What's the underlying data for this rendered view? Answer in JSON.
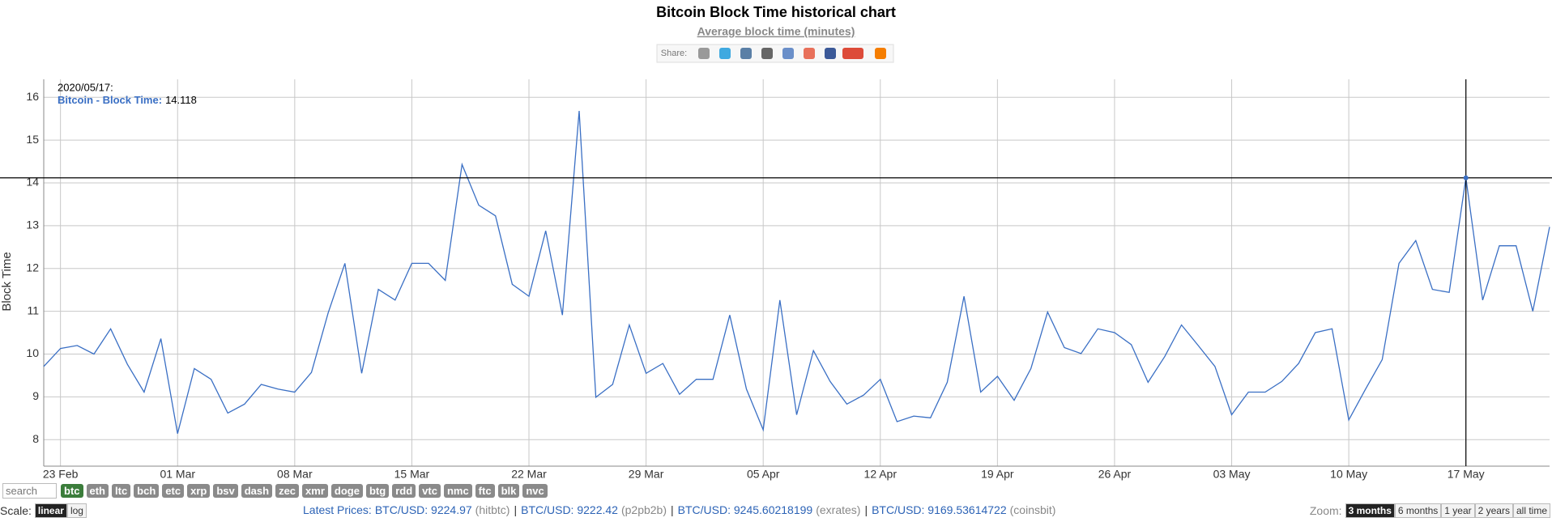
{
  "chart_data": {
    "type": "line",
    "title": "Bitcoin Block Time historical chart",
    "subtitle": "Average block time (minutes)",
    "y_label": "Block Time",
    "categories": [
      "22 Feb",
      "23 Feb",
      "24 Feb",
      "25 Feb",
      "26 Feb",
      "27 Feb",
      "28 Feb",
      "29 Feb",
      "01 Mar",
      "02 Mar",
      "03 Mar",
      "04 Mar",
      "05 Mar",
      "06 Mar",
      "07 Mar",
      "08 Mar",
      "09 Mar",
      "10 Mar",
      "11 Mar",
      "12 Mar",
      "13 Mar",
      "14 Mar",
      "15 Mar",
      "16 Mar",
      "17 Mar",
      "18 Mar",
      "19 Mar",
      "20 Mar",
      "21 Mar",
      "22 Mar",
      "23 Mar",
      "24 Mar",
      "25 Mar",
      "26 Mar",
      "27 Mar",
      "28 Mar",
      "29 Mar",
      "30 Mar",
      "31 Mar",
      "01 Apr",
      "02 Apr",
      "03 Apr",
      "04 Apr",
      "05 Apr",
      "06 Apr",
      "07 Apr",
      "08 Apr",
      "09 Apr",
      "10 Apr",
      "11 Apr",
      "12 Apr",
      "13 Apr",
      "14 Apr",
      "15 Apr",
      "16 Apr",
      "17 Apr",
      "18 Apr",
      "19 Apr",
      "20 Apr",
      "21 Apr",
      "22 Apr",
      "23 Apr",
      "24 Apr",
      "25 Apr",
      "26 Apr",
      "27 Apr",
      "28 Apr",
      "29 Apr",
      "30 Apr",
      "01 May",
      "02 May",
      "03 May",
      "04 May",
      "05 May",
      "06 May",
      "07 May",
      "08 May",
      "09 May",
      "10 May",
      "11 May",
      "12 May",
      "13 May",
      "14 May",
      "15 May",
      "16 May",
      "17 May",
      "18 May",
      "19 May",
      "20 May",
      "21 May",
      "22 May"
    ],
    "series": [
      {
        "name": "Bitcoin - Block Time",
        "color": "#3a6fc4",
        "values": [
          9.71,
          10.13,
          10.2,
          10.0,
          10.59,
          9.76,
          9.11,
          10.36,
          8.14,
          9.66,
          9.41,
          8.62,
          8.83,
          9.29,
          9.18,
          9.11,
          9.57,
          10.96,
          12.12,
          9.55,
          11.51,
          11.26,
          12.12,
          12.12,
          11.72,
          14.43,
          13.48,
          13.23,
          11.63,
          11.35,
          12.88,
          10.91,
          15.68,
          8.99,
          9.29,
          10.68,
          9.55,
          9.78,
          9.06,
          9.41,
          9.41,
          10.91,
          9.18,
          8.23,
          11.26,
          8.58,
          10.08,
          9.36,
          8.83,
          9.04,
          9.41,
          8.42,
          8.55,
          8.51,
          9.34,
          11.35,
          9.11,
          9.48,
          8.92,
          9.66,
          10.98,
          10.15,
          10.01,
          10.59,
          10.5,
          10.22,
          9.34,
          9.94,
          10.68,
          10.2,
          9.71,
          8.58,
          9.11,
          9.11,
          9.36,
          9.78,
          10.5,
          10.59,
          8.46,
          9.18,
          9.87,
          12.12,
          12.65,
          11.51,
          11.44,
          14.118,
          11.26,
          12.53,
          12.53,
          11.0,
          12.97
        ]
      }
    ],
    "xticks": [
      "23 Feb",
      "01 Mar",
      "08 Mar",
      "15 Mar",
      "22 Mar",
      "29 Mar",
      "05 Apr",
      "12 Apr",
      "19 Apr",
      "26 Apr",
      "03 May",
      "10 May",
      "17 May"
    ],
    "ylim": [
      7.38,
      16.42
    ],
    "yticks": [
      8,
      9,
      10,
      11,
      12,
      13,
      14,
      15,
      16
    ],
    "grid": true,
    "tooltip": {
      "date": "2020/05/17:",
      "label": "Bitcoin - Block Time:",
      "index": 85
    }
  },
  "share": "Share:",
  "controls": {
    "search": "search",
    "coins": [
      "btc",
      "eth",
      "ltc",
      "bch",
      "etc",
      "xrp",
      "bsv",
      "dash",
      "zec",
      "xmr",
      "doge",
      "btg",
      "rdd",
      "vtc",
      "nmc",
      "ftc",
      "blk",
      "nvc"
    ],
    "active_coin": "btc",
    "scale_label": "Scale:",
    "scales": [
      "linear",
      "log"
    ],
    "active_scale": "linear",
    "prices_label": "Latest Prices:",
    "separator": "|",
    "prices": [
      {
        "pair": "BTC/USD: 9224.97",
        "source": "(hitbtc)"
      },
      {
        "pair": "BTC/USD: 9222.42",
        "source": "(p2pb2b)"
      },
      {
        "pair": "BTC/USD: 9245.60218199",
        "source": "(exrates)"
      },
      {
        "pair": "BTC/USD: 9169.53614722",
        "source": "(coinsbit)"
      }
    ],
    "zoom_label": "Zoom:",
    "zooms": [
      "3 months",
      "6 months",
      "1 year",
      "2 years",
      "all time"
    ],
    "active_zoom": "3 months"
  }
}
